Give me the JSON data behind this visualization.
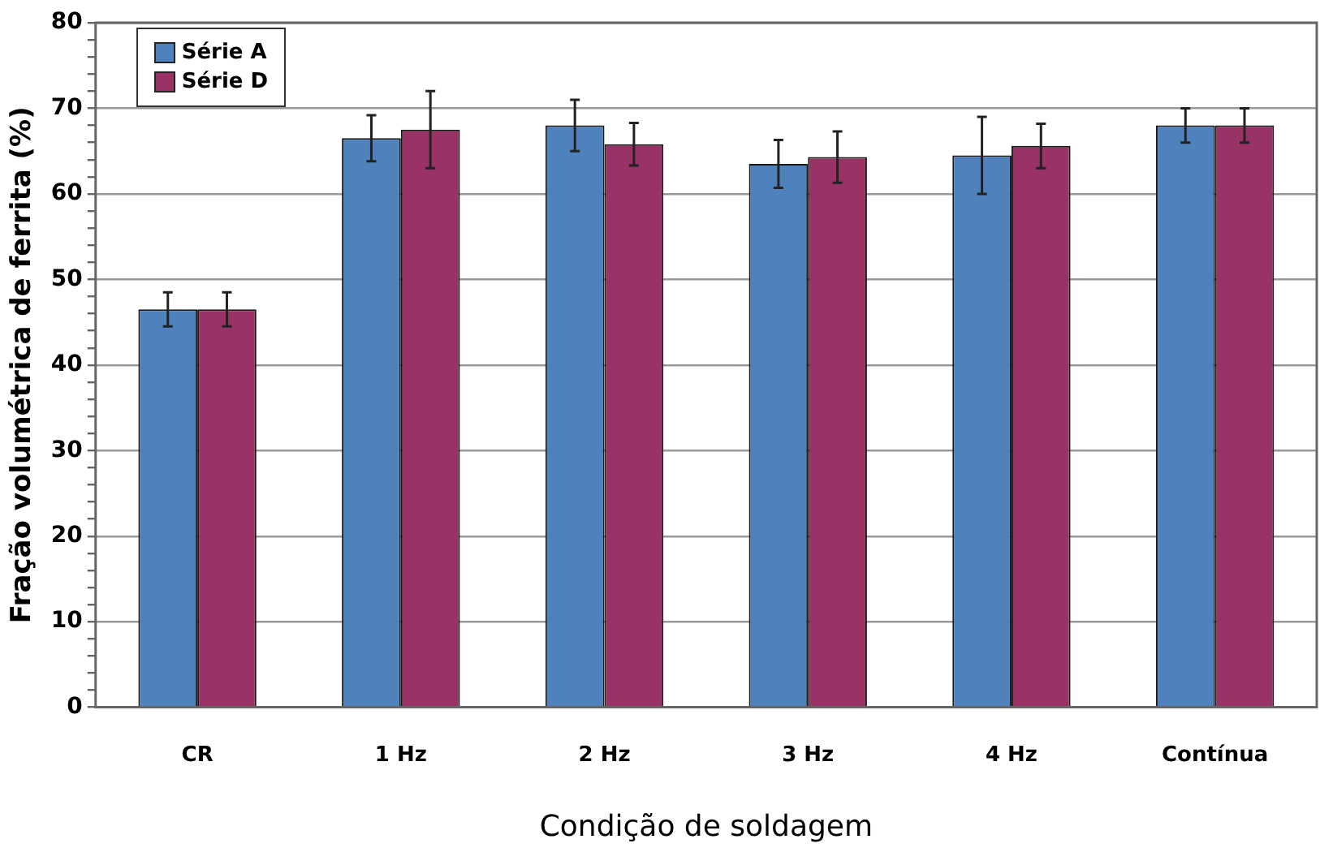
{
  "chart_data": {
    "type": "bar",
    "xlabel": "Condição de soldagem",
    "ylabel": "Fração volumétrica de ferrita (%)",
    "categories": [
      "CR",
      "1 Hz",
      "2 Hz",
      "3 Hz",
      "4 Hz",
      "Contínua"
    ],
    "series": [
      {
        "name": "Série A",
        "color": "#4f81bd",
        "values": [
          46.5,
          66.5,
          68.0,
          63.5,
          64.5,
          68.0
        ],
        "errors": [
          2,
          2.7,
          3,
          2.8,
          4.5,
          2
        ]
      },
      {
        "name": "Série D",
        "color": "#993366",
        "values": [
          46.5,
          67.5,
          65.8,
          64.3,
          65.6,
          68.0
        ],
        "errors": [
          2,
          4.5,
          2.5,
          3,
          2.6,
          2
        ]
      }
    ],
    "ylim": [
      0,
      80
    ],
    "yticks": [
      0,
      {
        "value": 2,
        "label": null
      },
      {
        "value": 4,
        "label": null
      },
      {
        "value": 6,
        "label": null
      },
      {
        "value": 8,
        "label": null
      },
      10,
      {
        "value": 12,
        "label": null
      },
      {
        "value": 14,
        "label": null
      },
      {
        "value": 16,
        "label": null
      },
      {
        "value": 18,
        "label": null
      },
      20,
      {
        "value": 22,
        "label": null
      },
      {
        "value": 24,
        "label": null
      },
      {
        "value": 26,
        "label": null
      },
      {
        "value": 28,
        "label": null
      },
      30,
      {
        "value": 32,
        "label": null
      },
      {
        "value": 34,
        "label": null
      },
      {
        "value": 36,
        "label": null
      },
      {
        "value": 38,
        "label": null
      },
      40,
      {
        "value": 42,
        "label": null
      },
      {
        "value": 44,
        "label": null
      },
      {
        "value": 46,
        "label": null
      },
      {
        "value": 48,
        "label": null
      },
      50,
      {
        "value": 52,
        "label": null
      },
      {
        "value": 54,
        "label": null
      },
      {
        "value": 56,
        "label": null
      },
      {
        "value": 58,
        "label": null
      },
      60,
      {
        "value": 62,
        "label": null
      },
      {
        "value": 64,
        "label": null
      },
      {
        "value": 66,
        "label": null
      },
      {
        "value": 68,
        "label": null
      },
      70,
      {
        "value": 72,
        "label": null
      },
      {
        "value": 74,
        "label": null
      },
      {
        "value": 76,
        "label": null
      },
      {
        "value": 78,
        "label": null
      },
      80
    ],
    "grid": "y",
    "legend": "top left"
  }
}
